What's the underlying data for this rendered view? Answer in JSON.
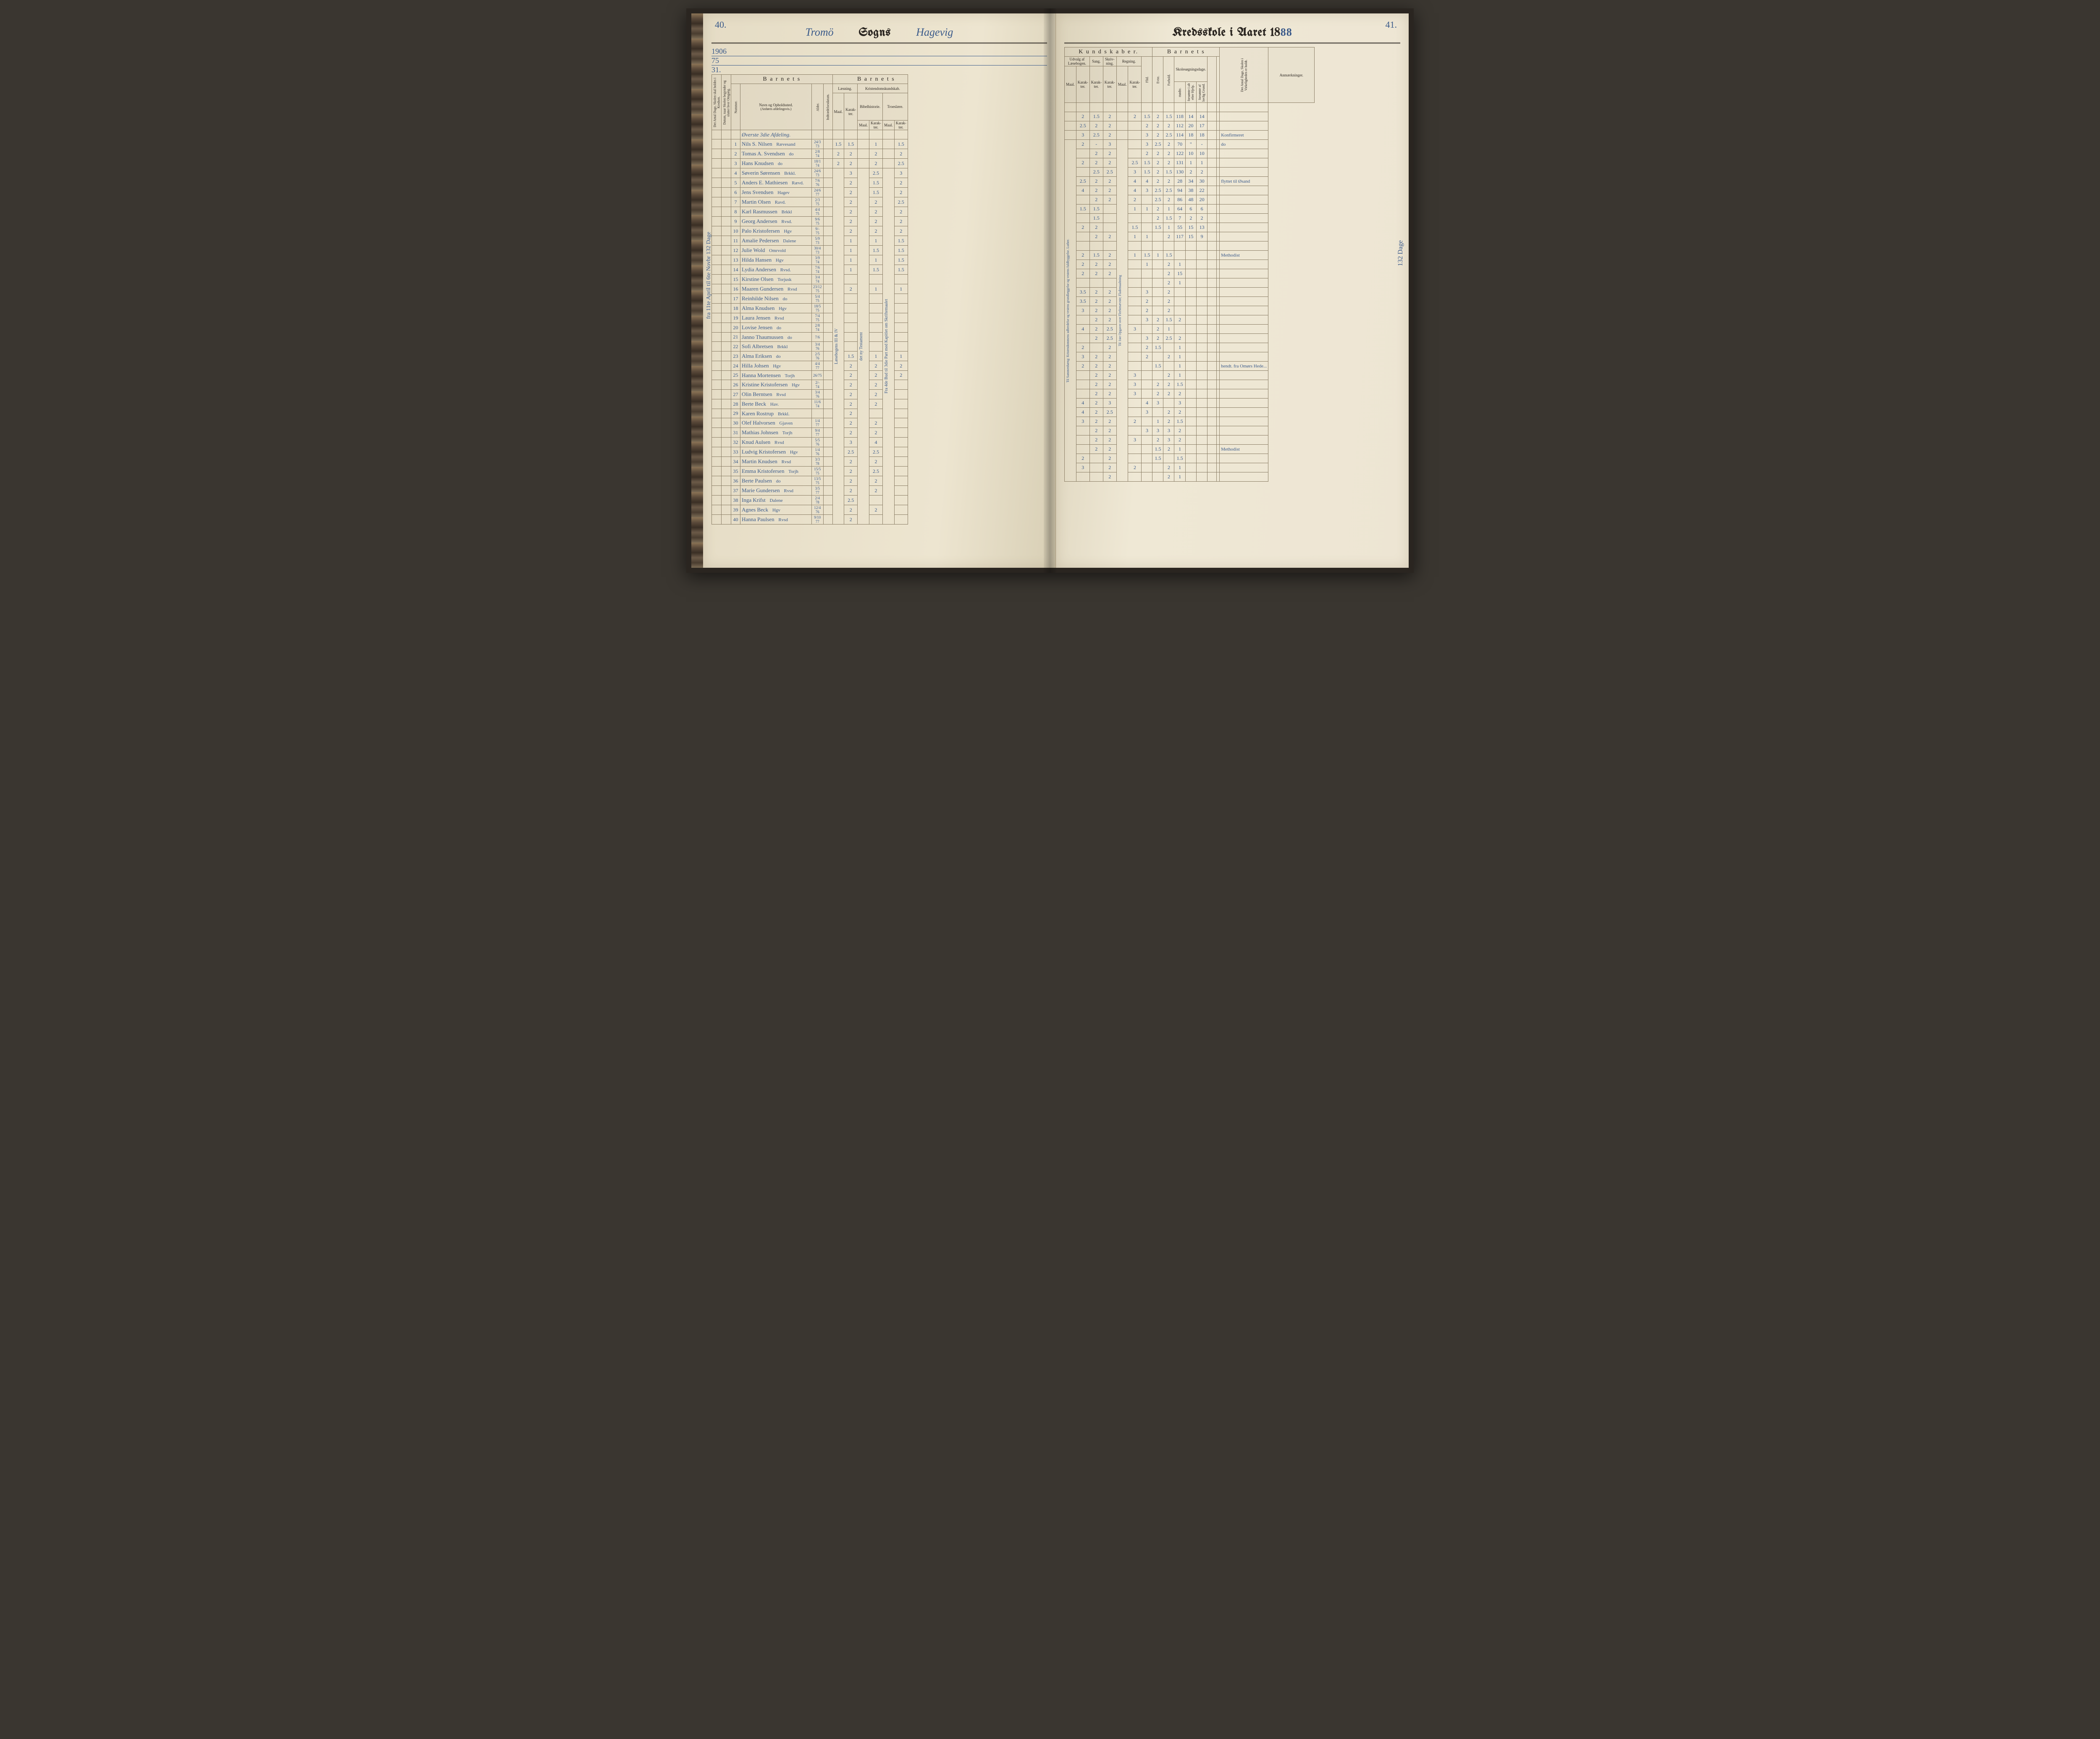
{
  "page_left_num": "40.",
  "page_right_num": "41.",
  "parish_hand": "Tromö",
  "parish_suffix_hand": "Hagevig",
  "year_suffix": "88",
  "printed": {
    "Sogns": "Sogns",
    "Kredsskole": "Kredsskole i Aaret 18",
    "Barnets": "B a r n e t s",
    "Kundskaber": "K u n d s k a b e r.",
    "Laesning": "Læsning.",
    "Kristendom": "Kristendomskundskab.",
    "Bibel": "Bibelhistorie.",
    "Troes": "Troeslære.",
    "Udvalg": "Udvalg af Læsebogen.",
    "Sang": "Sang.",
    "Skriv": "Skriv-\nning.",
    "Regning": "Regning.",
    "Skolesog": "Skolesøgningsdage.",
    "Anm": "Anmærkninger.",
    "Maal": "Maal.",
    "Karakter": "Karak-\nter.",
    "Navn": "Navn og Opholdssted.",
    "NavnSub": "(Anføres afdelingsvis.)",
    "Nummer": "Nummer.",
    "Alder": "Alder.",
    "Indtr": "Indtrædelsesdatum.",
    "AntDage": "Det Antal Dage,\nSkolen skal holdes i\nKredsen.",
    "Datum": "Datum, naar Skolen\nbegynder og slutter\nhver Omgang.",
    "Flid": "Flid.",
    "Evne": "Evne.",
    "Forhold": "Forhold.",
    "modte": "mødte.",
    "forsomte": "forsømte i\nalt efter Hjelp.",
    "forsomteuf": "forsømte af\nlovlig Grund.",
    "AntDage2": "Det Antal Dage,\nSkolen i Virkeligheden\ner holdt."
  },
  "dept": "Øverste 3die Afdeling.",
  "margin_note_left": "fra 11te April til 6te Novbr 132 Dage",
  "margin_note_calc_top": "1906",
  "margin_note_calc_mid": "75",
  "margin_note_calc_bot": "31.",
  "margin_note_right_days": "132 Dage",
  "vert_lasebog": "Læsebogens III & IV",
  "vert_bibel": "det ny Testament",
  "vert_troes": "Fra 4de Bud til 3die Part med\nKapitlet om Skriftemaalet",
  "vert_udvalg": "Til Sammenhæng: Kristendommens udbredelse og vestens grundlæggelse og vestens fuldbyggelse. Luther.",
  "vert_regning": "Til 1ste Opgaver over Flerbenævnte; Flademaaltning",
  "rows": [
    {
      "n": "1",
      "navn": "Nils S. Nilsen",
      "sted": "Rævesand",
      "alder": "24/3 73",
      "l_m": "1.5",
      "b_k": "1",
      "t_k": "1.5",
      "u_m": "2",
      "u_k": "-",
      "sa": "1.5",
      "sk": "2",
      "r_k": "2",
      "fl": "1.5",
      "ev": "2",
      "fo": "1.5",
      "md": "118",
      "f1": "14",
      "f2": "14",
      "rem": ""
    },
    {
      "n": "2",
      "navn": "Tomas A. Svendsen",
      "sted": "do",
      "alder": "2/8 74",
      "l_m": "2",
      "b_k": "2",
      "t_k": "2",
      "u_m": "2.5",
      "u_k": "",
      "sa": "2",
      "sk": "2",
      "r_k": "",
      "fl": "2",
      "ev": "2",
      "fo": "2",
      "md": "112",
      "f1": "20",
      "f2": "17",
      "rem": ""
    },
    {
      "n": "3",
      "navn": "Hans Knudsen",
      "sted": "do",
      "alder": "18/1 74",
      "l_m": "2",
      "b_k": "2",
      "t_k": "2.5",
      "u_m": "3",
      "u_k": "",
      "sa": "2.5",
      "sk": "2",
      "r_k": "",
      "fl": "3",
      "ev": "2",
      "fo": "2.5",
      "md": "114",
      "f1": "18",
      "f2": "18",
      "rem": "Konfirmeret"
    },
    {
      "n": "4",
      "navn": "Søverin Sørensen",
      "sted": "Brkkl.",
      "alder": "24/6 73",
      "l_m": "3",
      "b_k": "2.5",
      "t_k": "3",
      "u_m": "2",
      "u_k": "",
      "sa": "-",
      "sk": "3",
      "r_k": "",
      "fl": "3",
      "ev": "2.5",
      "fo": "2",
      "md": "70",
      "f1": "\"",
      "f2": "-",
      "rem": "do"
    },
    {
      "n": "5",
      "navn": "Anders E. Mathiesen",
      "sted": "Rævd.",
      "alder": "7/6 76",
      "l_m": "2",
      "b_k": "1.5",
      "t_k": "2",
      "u_m": "",
      "u_k": "",
      "sa": "2",
      "sk": "2",
      "r_k": "",
      "fl": "2",
      "ev": "2",
      "fo": "2",
      "md": "122",
      "f1": "10",
      "f2": "10",
      "rem": ""
    },
    {
      "n": "6",
      "navn": "Jens Svendsen",
      "sted": "Hagev",
      "alder": "24/6 77",
      "l_m": "2",
      "b_k": "1.5",
      "t_k": "2",
      "u_m": "2",
      "u_k": "",
      "sa": "2",
      "sk": "2",
      "r_k": "2.5",
      "fl": "1.5",
      "ev": "2",
      "fo": "2",
      "md": "131",
      "f1": "1",
      "f2": "1",
      "rem": ""
    },
    {
      "n": "7",
      "navn": "Martin Olsen",
      "sted": "Ravd.",
      "alder": "2/3 75",
      "l_m": "2",
      "b_k": "2",
      "t_k": "2.5",
      "u_m": "",
      "u_k": "",
      "sa": "2.5",
      "sk": "2.5",
      "r_k": "3",
      "fl": "1.5",
      "ev": "2",
      "fo": "1.5",
      "md": "130",
      "f1": "2",
      "f2": "2",
      "rem": ""
    },
    {
      "n": "8",
      "navn": "Karl Rasmussen",
      "sted": "Brkkl",
      "alder": "4/4 75",
      "l_m": "2",
      "b_k": "2",
      "t_k": "2",
      "u_m": "2.5",
      "u_k": "",
      "sa": "2",
      "sk": "2",
      "r_k": "4",
      "fl": "4",
      "ev": "2",
      "fo": "2",
      "md": "28",
      "f1": "34",
      "f2": "30",
      "rem": "flyttet til Øsand"
    },
    {
      "n": "9",
      "navn": "Georg Andersen",
      "sted": "Rvsd.",
      "alder": "9/6 75",
      "l_m": "2",
      "b_k": "2",
      "t_k": "2",
      "u_m": "4",
      "u_k": "",
      "sa": "2",
      "sk": "2",
      "r_k": "4",
      "fl": "3",
      "ev": "2.5",
      "fo": "2.5",
      "md": "94",
      "f1": "38",
      "f2": "22",
      "rem": ""
    },
    {
      "n": "10",
      "navn": "Palo Kristofersen",
      "sted": "Hgv",
      "alder": "9/- 75",
      "l_m": "2",
      "b_k": "2",
      "t_k": "2",
      "u_m": "",
      "u_k": "",
      "sa": "2",
      "sk": "2",
      "r_k": "2",
      "fl": "",
      "ev": "2.5",
      "fo": "2",
      "md": "86",
      "f1": "48",
      "f2": "20",
      "rem": ""
    },
    {
      "n": "11",
      "navn": "Amalie Pedersen",
      "sted": "Dalene",
      "alder": "5/9 73",
      "l_m": "1",
      "b_k": "1",
      "t_k": "1.5",
      "u_m": "1.5",
      "u_k": "",
      "sa": "1.5",
      "sk": "",
      "r_k": "1",
      "fl": "1",
      "ev": "2",
      "fo": "1",
      "md": "64",
      "f1": "6",
      "f2": "6",
      "rem": ""
    },
    {
      "n": "12",
      "navn": "Julie Wold",
      "sted": "Omrvold",
      "alder": "30/4 73",
      "l_m": "1",
      "b_k": "1.5",
      "t_k": "1.5",
      "u_m": "",
      "u_k": "",
      "sa": "1.5",
      "sk": "",
      "r_k": "",
      "fl": "",
      "ev": "2",
      "fo": "1.5",
      "md": "7",
      "f1": "2",
      "f2": "2",
      "rem": ""
    },
    {
      "n": "13",
      "navn": "Hilda Hansen",
      "sted": "Hgv",
      "alder": "3/9 74",
      "l_m": "1",
      "b_k": "1",
      "t_k": "1.5",
      "u_m": "2",
      "u_k": "",
      "sa": "2",
      "sk": "",
      "r_k": "1.5",
      "fl": "",
      "ev": "1.5",
      "fo": "1",
      "md": "55",
      "f1": "15",
      "f2": "13",
      "rem": ""
    },
    {
      "n": "14",
      "navn": "Lydia Andersen",
      "sted": "Rvsd.",
      "alder": "7/6 74",
      "l_m": "1",
      "b_k": "1.5",
      "t_k": "1.5",
      "u_m": "",
      "u_k": "",
      "sa": "2",
      "sk": "2",
      "r_k": "1",
      "fl": "1",
      "ev": "",
      "fo": "2",
      "md": "117",
      "f1": "15",
      "f2": "9",
      "rem": ""
    },
    {
      "n": "15",
      "navn": "Kirstine Olsen",
      "sted": "Torjusk",
      "alder": "3/4 74",
      "l_m": "",
      "b_k": "",
      "t_k": "",
      "u_m": "",
      "u_k": "",
      "sa": "",
      "sk": "",
      "r_k": "",
      "fl": "",
      "ev": "",
      "fo": "",
      "md": "",
      "f1": "",
      "f2": "",
      "rem": ""
    },
    {
      "n": "16",
      "navn": "Maaren Gundersen",
      "sted": "Rvsd",
      "alder": "23/12 75",
      "l_m": "2",
      "b_k": "1",
      "t_k": "1",
      "u_m": "2",
      "u_k": "",
      "sa": "1.5",
      "sk": "2",
      "r_k": "1",
      "fl": "1.5",
      "ev": "1",
      "fo": "1.5",
      "md": "",
      "f1": "",
      "f2": "",
      "rem": "Methodist"
    },
    {
      "n": "17",
      "navn": "Reinhilde Nilsen",
      "sted": "do",
      "alder": "5/4 75",
      "l_m": "",
      "b_k": "",
      "t_k": "",
      "u_m": "2",
      "u_k": "",
      "sa": "2",
      "sk": "2",
      "r_k": "",
      "fl": "1",
      "ev": "",
      "fo": "2",
      "md": "1",
      "f1": "",
      "f2": "",
      "rem": ""
    },
    {
      "n": "18",
      "navn": "Alma Knudsen",
      "sted": "Hgv",
      "alder": "18/5 75",
      "l_m": "",
      "b_k": "",
      "t_k": "",
      "u_m": "2",
      "u_k": "",
      "sa": "2",
      "sk": "2",
      "r_k": "",
      "fl": "",
      "ev": "",
      "fo": "2",
      "md": "15",
      "f1": "",
      "f2": "",
      "rem": ""
    },
    {
      "n": "19",
      "navn": "Laura Jensen",
      "sted": "Rvsd",
      "alder": "7/4 75",
      "l_m": "",
      "b_k": "",
      "t_k": "",
      "u_m": "",
      "u_k": "",
      "sa": "",
      "sk": "",
      "r_k": "",
      "fl": "",
      "ev": "",
      "fo": "2",
      "md": "1",
      "f1": "",
      "f2": "",
      "rem": ""
    },
    {
      "n": "20",
      "navn": "Lovise Jensen",
      "sted": "do",
      "alder": "2/8 74",
      "l_m": "",
      "b_k": "",
      "t_k": "",
      "u_m": "3.5",
      "u_k": "",
      "sa": "2",
      "sk": "2",
      "r_k": "",
      "fl": "3",
      "ev": "",
      "fo": "2",
      "md": "",
      "f1": "",
      "f2": "",
      "rem": ""
    },
    {
      "n": "21",
      "navn": "Janno Thaumussen",
      "sted": "do",
      "alder": "7/6",
      "l_m": "",
      "b_k": "",
      "t_k": "",
      "u_m": "3.5",
      "u_k": "",
      "sa": "2",
      "sk": "2",
      "r_k": "",
      "fl": "2",
      "ev": "",
      "fo": "2",
      "md": "",
      "f1": "",
      "f2": "",
      "rem": ""
    },
    {
      "n": "22",
      "navn": "Sofi Albretsen",
      "sted": "Brkkl",
      "alder": "3/4 76",
      "l_m": "",
      "b_k": "",
      "t_k": "",
      "u_m": "3",
      "u_k": "",
      "sa": "2",
      "sk": "2",
      "r_k": "",
      "fl": "2",
      "ev": "",
      "fo": "2",
      "md": "",
      "f1": "",
      "f2": "",
      "rem": ""
    },
    {
      "n": "23",
      "navn": "Alma Eriksen",
      "sted": "do",
      "alder": "2/5 76",
      "l_m": "1.5",
      "b_k": "1",
      "t_k": "1",
      "u_m": "",
      "u_k": "",
      "sa": "2",
      "sk": "2",
      "r_k": "",
      "fl": "3",
      "ev": "2",
      "fo": "1.5",
      "md": "2",
      "f1": "",
      "f2": "",
      "rem": ""
    },
    {
      "n": "24",
      "navn": "Hilla Johsen",
      "sted": "Hgv",
      "alder": "4/4 77",
      "l_m": "2",
      "b_k": "2",
      "t_k": "2",
      "u_m": "4",
      "u_k": "",
      "sa": "2",
      "sk": "2.5",
      "r_k": "3",
      "fl": "",
      "ev": "2",
      "fo": "1",
      "md": "",
      "f1": "",
      "f2": "",
      "rem": ""
    },
    {
      "n": "25",
      "navn": "Hanna Mortensen",
      "sted": "Torjh",
      "alder": "26/75",
      "l_m": "2",
      "b_k": "2",
      "t_k": "2",
      "u_m": "",
      "u_k": "",
      "sa": "2",
      "sk": "2.5",
      "r_k": "",
      "fl": "3",
      "ev": "2",
      "fo": "2.5",
      "md": "2",
      "f1": "",
      "f2": "",
      "rem": ""
    },
    {
      "n": "26",
      "navn": "Kristine Kristofersen",
      "sted": "Hgv",
      "alder": "2/- 74",
      "l_m": "2",
      "b_k": "2",
      "t_k": "",
      "u_m": "2",
      "u_k": "",
      "sa": "",
      "sk": "2",
      "r_k": "",
      "fl": "2",
      "ev": "1.5",
      "fo": "",
      "md": "1",
      "f1": "",
      "f2": "",
      "rem": ""
    },
    {
      "n": "27",
      "navn": "Olin Berntsen",
      "sted": "Rvsd",
      "alder": "3/4 76",
      "l_m": "2",
      "b_k": "2",
      "t_k": "",
      "u_m": "3",
      "u_k": "",
      "sa": "2",
      "sk": "2",
      "r_k": "",
      "fl": "2",
      "ev": "",
      "fo": "2",
      "md": "1",
      "f1": "",
      "f2": "",
      "rem": ""
    },
    {
      "n": "28",
      "navn": "Berte Beck",
      "sted": "Hav.",
      "alder": "11/6 74",
      "l_m": "2",
      "b_k": "2",
      "t_k": "",
      "u_m": "2",
      "u_k": "",
      "sa": "2",
      "sk": "2",
      "r_k": "",
      "fl": "",
      "ev": "1.5",
      "fo": "",
      "md": "1",
      "f1": "",
      "f2": "",
      "rem": "hendt. fra Omørs Hede..."
    },
    {
      "n": "29",
      "navn": "Karen Rostrup",
      "sted": "Brkkl.",
      "alder": "",
      "l_m": "2",
      "b_k": "",
      "t_k": "",
      "u_m": "",
      "u_k": "",
      "sa": "2",
      "sk": "2",
      "r_k": "3",
      "fl": "",
      "ev": "",
      "fo": "2",
      "md": "1",
      "f1": "",
      "f2": "",
      "rem": ""
    },
    {
      "n": "30",
      "navn": "Olef Halvorsen",
      "sted": "Gjaven",
      "alder": "1/4 77",
      "l_m": "2",
      "b_k": "2",
      "t_k": "",
      "u_m": "",
      "u_k": "",
      "sa": "2",
      "sk": "2",
      "r_k": "3",
      "fl": "",
      "ev": "2",
      "fo": "2",
      "md": "1.5",
      "f1": "",
      "f2": "",
      "rem": ""
    },
    {
      "n": "31",
      "navn": "Mathias Johnsen",
      "sted": "Torjh",
      "alder": "9/4 77",
      "l_m": "2",
      "b_k": "2",
      "t_k": "",
      "u_m": "",
      "u_k": "",
      "sa": "2",
      "sk": "2",
      "r_k": "3",
      "fl": "",
      "ev": "2",
      "fo": "2",
      "md": "2",
      "f1": "",
      "f2": "",
      "rem": ""
    },
    {
      "n": "32",
      "navn": "Knud Aulsen",
      "sted": "Rvsd",
      "alder": "5/5 76",
      "l_m": "3",
      "b_k": "4",
      "t_k": "",
      "u_m": "4",
      "u_k": "",
      "sa": "2",
      "sk": "3",
      "r_k": "",
      "fl": "4",
      "ev": "3",
      "fo": "",
      "md": "3",
      "f1": "",
      "f2": "",
      "rem": ""
    },
    {
      "n": "33",
      "navn": "Ludvig Kristofersen",
      "sted": "Hgv",
      "alder": "1/4 76",
      "l_m": "2.5",
      "b_k": "2.5",
      "t_k": "",
      "u_m": "4",
      "u_k": "",
      "sa": "2",
      "sk": "2.5",
      "r_k": "",
      "fl": "3",
      "ev": "",
      "fo": "2",
      "md": "2",
      "f1": "",
      "f2": "",
      "rem": ""
    },
    {
      "n": "34",
      "navn": "Martin Knudsen",
      "sted": "Rvsd",
      "alder": "3/3 78",
      "l_m": "2",
      "b_k": "2",
      "t_k": "",
      "u_m": "3",
      "u_k": "",
      "sa": "2",
      "sk": "2",
      "r_k": "2",
      "fl": "",
      "ev": "1",
      "fo": "2",
      "md": "1.5",
      "f1": "",
      "f2": "",
      "rem": ""
    },
    {
      "n": "35",
      "navn": "Emma Kristofersen",
      "sted": "Torjh",
      "alder": "15/5 75",
      "l_m": "2",
      "b_k": "2.5",
      "t_k": "",
      "u_m": "",
      "u_k": "",
      "sa": "2",
      "sk": "2",
      "r_k": "",
      "fl": "3",
      "ev": "3",
      "fo": "3",
      "md": "2",
      "f1": "",
      "f2": "",
      "rem": ""
    },
    {
      "n": "36",
      "navn": "Berte Paulsen",
      "sted": "do",
      "alder": "13/5 75",
      "l_m": "2",
      "b_k": "2",
      "t_k": "",
      "u_m": "",
      "u_k": "",
      "sa": "2",
      "sk": "2",
      "r_k": "3",
      "fl": "",
      "ev": "2",
      "fo": "3",
      "md": "2",
      "f1": "",
      "f2": "",
      "rem": ""
    },
    {
      "n": "37",
      "navn": "Marie Gundersen",
      "sted": "Rvsd",
      "alder": "3/5 77",
      "l_m": "2",
      "b_k": "2",
      "t_k": "",
      "u_m": "",
      "u_k": "-",
      "sa": "2",
      "sk": "2",
      "r_k": "",
      "fl": "",
      "ev": "1.5",
      "fo": "2",
      "md": "1",
      "f1": "",
      "f2": "",
      "rem": "Methodist"
    },
    {
      "n": "38",
      "navn": "Inga Krifst",
      "sted": "Dalene",
      "alder": "2/4 78",
      "l_m": "2.5",
      "b_k": "",
      "t_k": "",
      "u_m": "2",
      "u_k": "",
      "sa": "",
      "sk": "2",
      "r_k": "",
      "fl": "",
      "ev": "1.5",
      "fo": "",
      "md": "1.5",
      "f1": "",
      "f2": "",
      "rem": ""
    },
    {
      "n": "39",
      "navn": "Agnes Beck",
      "sted": "Hgv",
      "alder": "12/4 76",
      "l_m": "2",
      "b_k": "2",
      "t_k": "",
      "u_m": "3",
      "u_k": "",
      "sa": "",
      "sk": "2",
      "r_k": "2",
      "fl": "",
      "ev": "",
      "fo": "2",
      "md": "1",
      "f1": "",
      "f2": "",
      "rem": ""
    },
    {
      "n": "40",
      "navn": "Hanna Paulsen",
      "sted": "Rvsd",
      "alder": "9/10 77",
      "l_m": "2",
      "b_k": "",
      "t_k": "",
      "u_m": "",
      "u_k": "",
      "sa": "",
      "sk": "2",
      "r_k": "",
      "fl": "",
      "ev": "",
      "fo": "2",
      "md": "1",
      "f1": "",
      "f2": "",
      "rem": ""
    }
  ]
}
